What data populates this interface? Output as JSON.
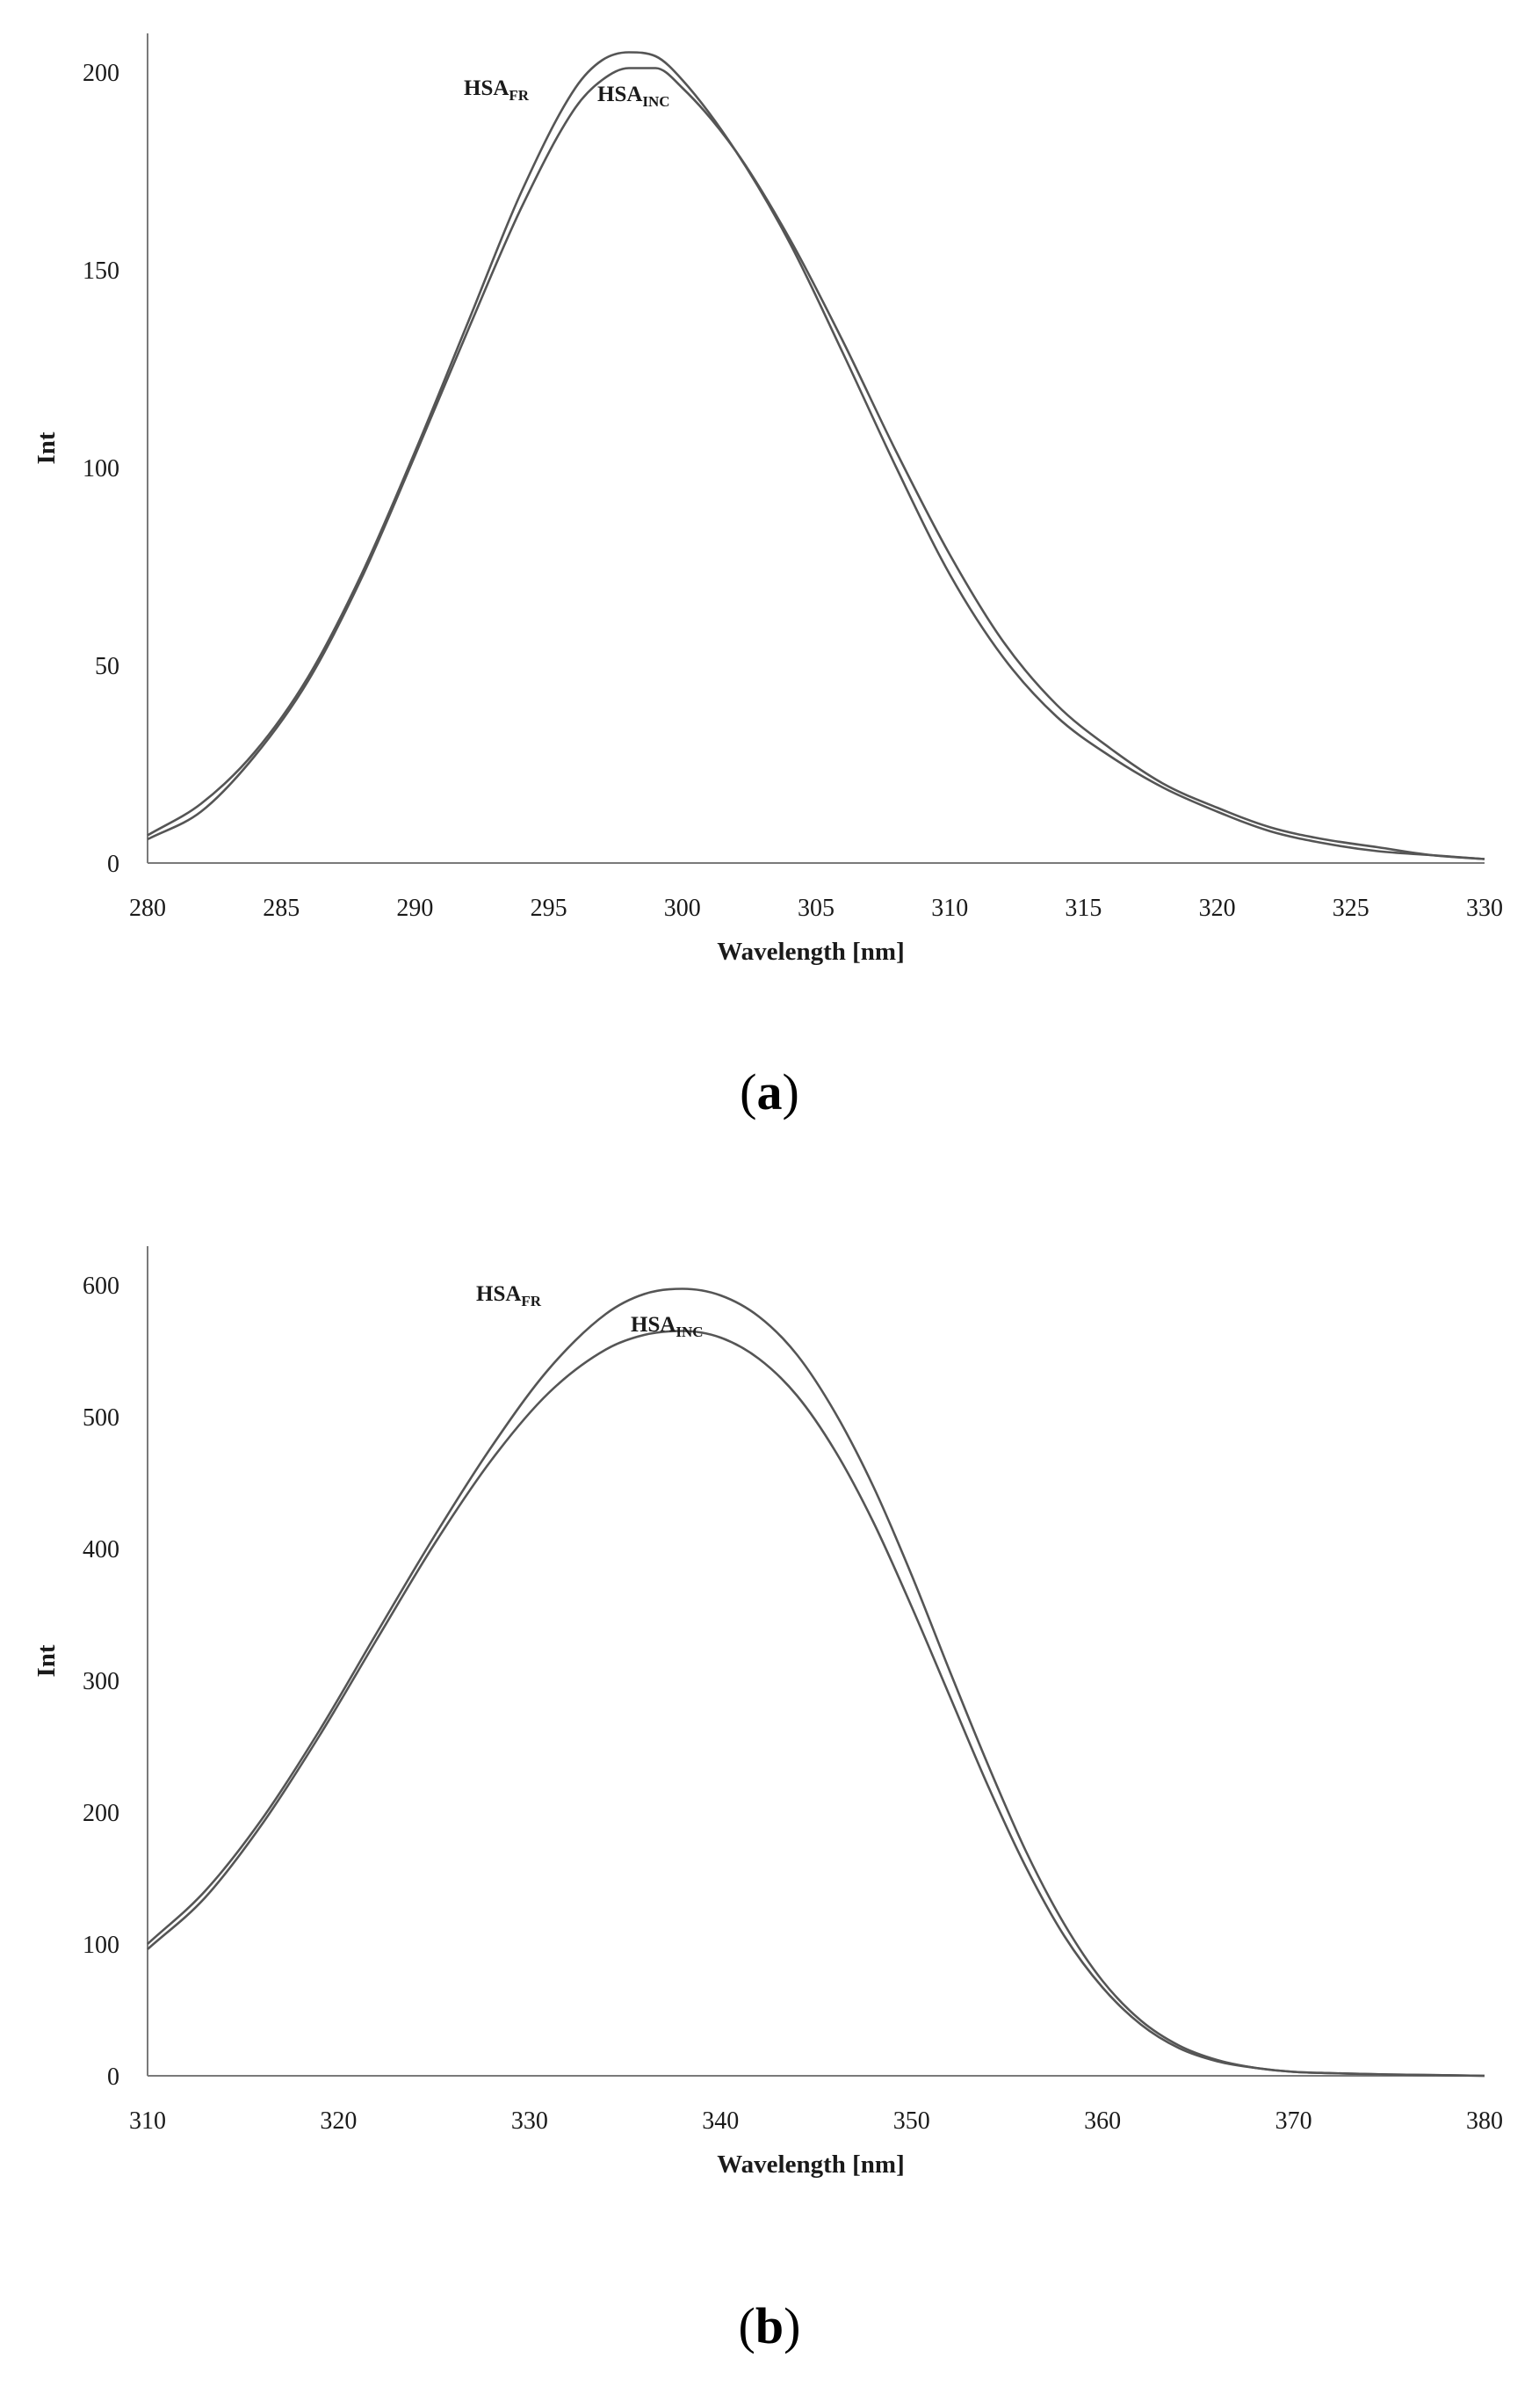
{
  "chart_data": [
    {
      "type": "line",
      "panel": "a",
      "xlabel": "Wavelength [nm]",
      "ylabel": "Int",
      "xlim": [
        280,
        330
      ],
      "ylim": [
        0,
        210
      ],
      "xticks": [
        280,
        285,
        290,
        295,
        300,
        305,
        310,
        315,
        320,
        325,
        330
      ],
      "yticks": [
        0,
        50,
        100,
        150,
        200
      ],
      "grid": false,
      "legend": "none",
      "series": [
        {
          "name": "HSA_FR",
          "label_main": "HSA",
          "label_sub": "FR",
          "x": [
            280,
            282,
            284,
            286,
            288,
            290,
            292,
            294,
            296,
            297,
            298,
            299,
            300,
            302,
            304,
            306,
            308,
            310,
            312,
            314,
            316,
            318,
            320,
            322,
            324,
            326,
            328,
            330
          ],
          "y": [
            7,
            15,
            28,
            47,
            73,
            104,
            137,
            170,
            196,
            203,
            205,
            204,
            198,
            180,
            157,
            129,
            100,
            73,
            52,
            37,
            27,
            19,
            13,
            8,
            5,
            3,
            2,
            1
          ]
        },
        {
          "name": "HSA_INC",
          "label_main": "HSA",
          "label_sub": "INC",
          "x": [
            280,
            282,
            284,
            286,
            288,
            290,
            292,
            294,
            296,
            297,
            298,
            299,
            300,
            302,
            304,
            306,
            308,
            310,
            312,
            314,
            316,
            318,
            320,
            322,
            324,
            326,
            328,
            330
          ],
          "y": [
            6,
            13,
            27,
            46,
            72,
            103,
            135,
            166,
            191,
            198,
            201,
            201,
            196,
            180,
            158,
            132,
            104,
            78,
            56,
            40,
            29,
            20,
            14,
            9,
            6,
            4,
            2,
            1
          ]
        }
      ]
    },
    {
      "type": "line",
      "panel": "b",
      "xlabel": "Wavelength [nm]",
      "ylabel": "Int",
      "xlim": [
        310,
        380
      ],
      "ylim": [
        0,
        600
      ],
      "xticks": [
        310,
        320,
        330,
        340,
        350,
        360,
        370,
        380
      ],
      "yticks": [
        0,
        100,
        200,
        300,
        400,
        500,
        600
      ],
      "grid": false,
      "legend": "none",
      "series": [
        {
          "name": "HSA_FR",
          "label_main": "HSA",
          "label_sub": "FR",
          "x": [
            310,
            313,
            316,
            319,
            322,
            325,
            328,
            331,
            334,
            336,
            338,
            340,
            342,
            344,
            346,
            348,
            350,
            352,
            354,
            356,
            358,
            360,
            362,
            364,
            366,
            368,
            370,
            372,
            375,
            380
          ],
          "y": [
            100,
            140,
            195,
            262,
            336,
            409,
            477,
            536,
            578,
            593,
            597,
            592,
            576,
            547,
            503,
            447,
            380,
            307,
            236,
            170,
            115,
            72,
            42,
            23,
            12,
            6,
            3,
            2,
            1,
            0
          ]
        },
        {
          "name": "HSA_INC",
          "label_main": "HSA",
          "label_sub": "INC",
          "x": [
            310,
            313,
            316,
            319,
            322,
            325,
            328,
            331,
            334,
            336,
            338,
            340,
            342,
            344,
            346,
            348,
            350,
            352,
            354,
            356,
            358,
            360,
            362,
            364,
            366,
            368,
            370,
            372,
            375,
            380
          ],
          "y": [
            96,
            135,
            191,
            258,
            331,
            403,
            467,
            518,
            551,
            562,
            565,
            560,
            544,
            516,
            474,
            420,
            356,
            288,
            220,
            158,
            106,
            67,
            39,
            21,
            11,
            6,
            3,
            2,
            1,
            0
          ]
        }
      ]
    }
  ],
  "panels": [
    {
      "label_open": "(",
      "label_letter": "a",
      "label_close": ")"
    },
    {
      "label_open": "(",
      "label_letter": "b",
      "label_close": ")"
    }
  ]
}
